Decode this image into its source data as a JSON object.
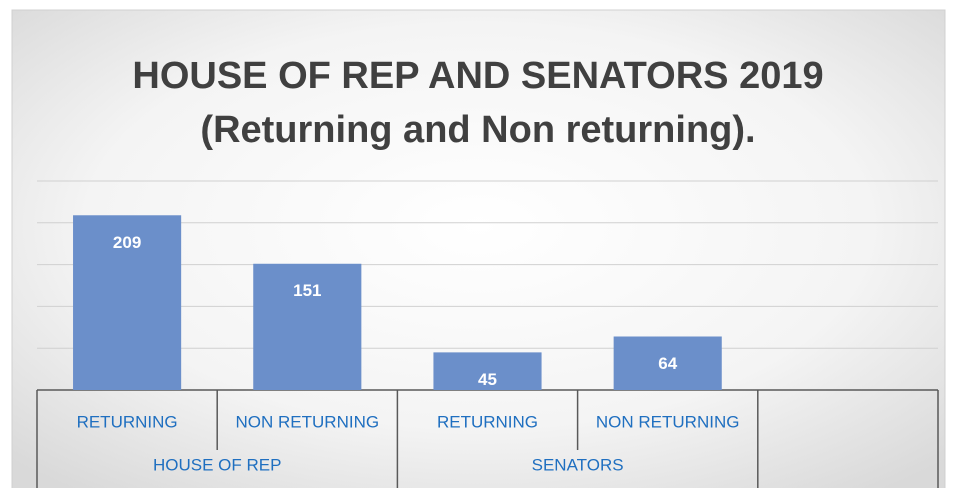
{
  "chart_data": {
    "type": "bar",
    "title": [
      "HOUSE OF REP AND SENATORS 2019",
      "(Returning and Non returning)."
    ],
    "categories": [
      "RETURNING",
      "NON RETURNING",
      "RETURNING",
      "NON RETURNING",
      null
    ],
    "groups": [
      "HOUSE OF REP",
      "SENATORS"
    ],
    "values": [
      209,
      151,
      45,
      64,
      null
    ],
    "color": "#6b8fca",
    "ylim": [
      0,
      250
    ],
    "yticks": [
      0,
      50,
      100,
      150,
      200,
      250
    ],
    "grid": true
  }
}
